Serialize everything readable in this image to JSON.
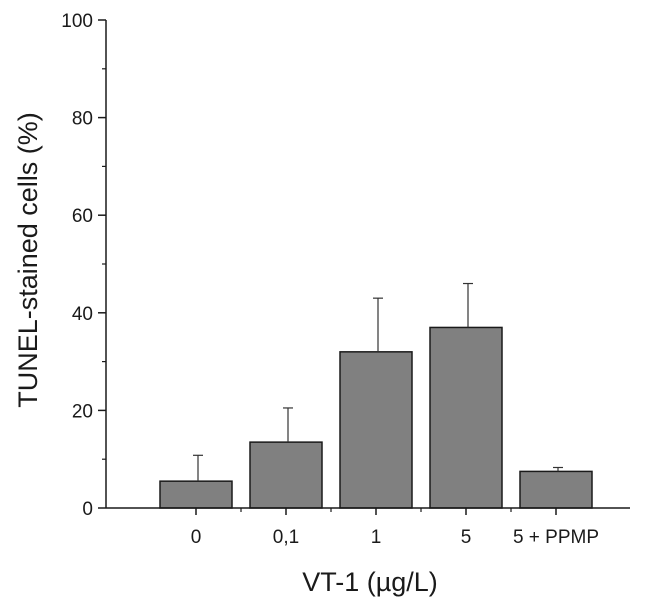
{
  "chart_data": {
    "type": "bar",
    "xlabel": "VT-1 (µg/L)",
    "ylabel": "TUNEL-stained cells (%)",
    "ylim": [
      0,
      100
    ],
    "yticks": [
      "0",
      "20",
      "40",
      "60",
      "80",
      "100"
    ],
    "categories": [
      "0",
      "0,1",
      "1",
      "5",
      "5 + PPMP"
    ],
    "values": [
      5.5,
      13.5,
      32,
      37,
      7.5
    ],
    "error_bars": [
      5.3,
      7,
      11,
      9,
      0.8
    ],
    "grid": false,
    "bar_color": "#808080",
    "bar_edge_color": "#1a1a1a"
  }
}
